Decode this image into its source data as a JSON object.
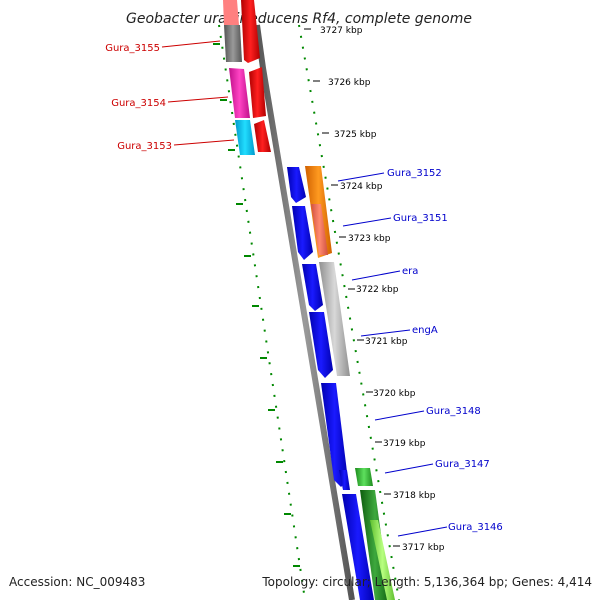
{
  "title": "Geobacter uraniireducens Rf4, complete genome",
  "tick_labels": [
    "3727 kbp",
    "3726 kbp",
    "3725 kbp",
    "3724 kbp",
    "3723 kbp",
    "3722 kbp",
    "3721 kbp",
    "3720 kbp",
    "3719 kbp",
    "3718 kbp",
    "3717 kbp"
  ],
  "gene_labels": {
    "reverse": [
      "Gura_3155",
      "Gura_3154",
      "Gura_3153"
    ],
    "forward": [
      "Gura_3152",
      "Gura_3151",
      "era",
      "engA",
      "Gura_3148",
      "Gura_3147",
      "Gura_3146"
    ]
  },
  "footer": {
    "accession": "Accession: NC_009483",
    "summary": "Topology: circular; Length: 5,136,364 bp; Genes: 4,414"
  },
  "colors": {
    "reverse_label": "#cc0000",
    "forward_label": "#0000cc",
    "cds": "#0000ee",
    "tick": "#007700",
    "backbone": "#888888"
  }
}
